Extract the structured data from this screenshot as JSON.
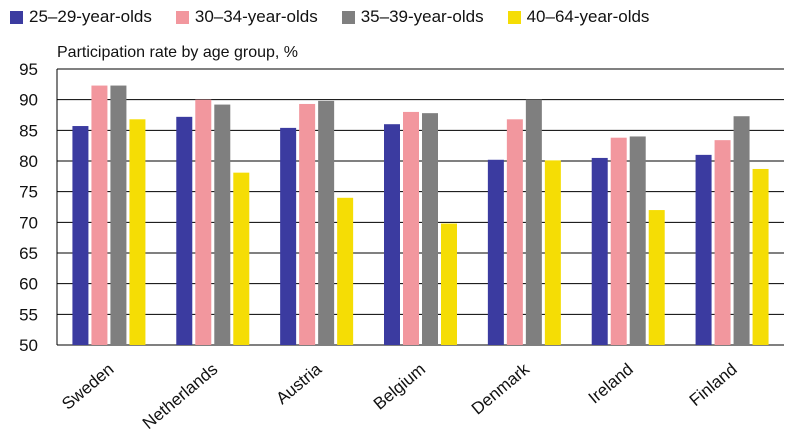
{
  "chart_data": {
    "type": "bar",
    "title": "",
    "subtitle": "Participation rate by age group, %",
    "xlabel": "",
    "ylabel": "",
    "ylim": [
      50,
      95
    ],
    "yticks": [
      "50",
      "55",
      "60",
      "65",
      "70",
      "75",
      "80",
      "85",
      "90",
      "95"
    ],
    "grid": "horizontal",
    "legend_position": "top",
    "categories": [
      "Sweden",
      "Netherlands",
      "Austria",
      "Belgium",
      "Denmark",
      "Ireland",
      "Finland"
    ],
    "series": [
      {
        "name": "25–29-year-olds",
        "color": "#3b3ba0",
        "values": [
          85.7,
          87.2,
          85.4,
          86.0,
          80.2,
          80.5,
          81.0
        ]
      },
      {
        "name": "30–34-year-olds",
        "color": "#f2979e",
        "values": [
          92.3,
          90.0,
          89.3,
          88.0,
          86.8,
          83.8,
          83.4
        ]
      },
      {
        "name": "35–39-year-olds",
        "color": "#7f7f7f",
        "values": [
          92.3,
          89.2,
          89.8,
          87.8,
          90.0,
          84.0,
          87.3
        ]
      },
      {
        "name": "40–64-year-olds",
        "color": "#f5dd05",
        "values": [
          86.8,
          78.1,
          74.0,
          69.8,
          80.1,
          72.0,
          78.7
        ]
      }
    ]
  }
}
